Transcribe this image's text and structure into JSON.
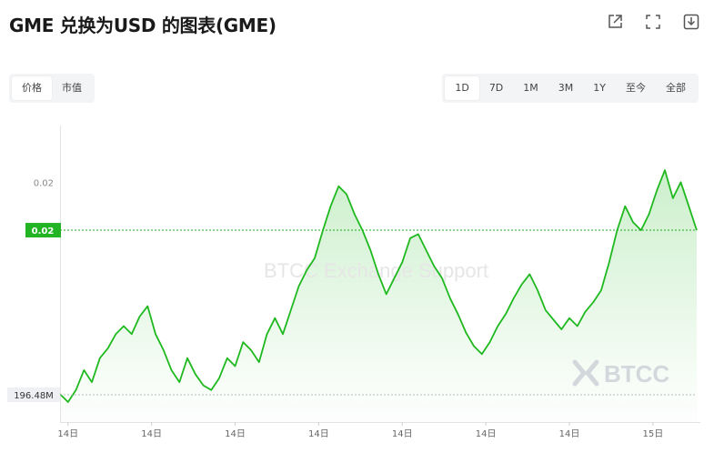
{
  "header": {
    "title": "GME 兑换为USD 的图表(GME)"
  },
  "toolbar": {
    "icons": [
      "share-icon",
      "fullscreen-icon",
      "download-icon"
    ]
  },
  "metric_tabs": {
    "items": [
      "价格",
      "市值"
    ],
    "active": 0
  },
  "range_tabs": {
    "items": [
      "1D",
      "7D",
      "1M",
      "3M",
      "1Y",
      "至今",
      "全部"
    ],
    "active": 0
  },
  "watermark": {
    "text": "BTCC Exchange Support",
    "logo": "BTCC"
  },
  "colors": {
    "line": "#1fb91f",
    "badge": "#22b422",
    "fill_top": "#c9eec9"
  },
  "chart_data": {
    "type": "area",
    "xlabel": "",
    "ylabel": "",
    "ylim": [
      0.0176,
      0.0214
    ],
    "y_ticks": [
      {
        "value": 0.0206,
        "label": "0.02"
      }
    ],
    "current_price": {
      "value": 0.02,
      "label": "0.02"
    },
    "volume_label": "196.48M",
    "x_ticks": [
      {
        "x": 1,
        "label": "14日"
      },
      {
        "x": 11.5,
        "label": "14日"
      },
      {
        "x": 22,
        "label": "14日"
      },
      {
        "x": 32.5,
        "label": "14日"
      },
      {
        "x": 43,
        "label": "14日"
      },
      {
        "x": 53.5,
        "label": "14日"
      },
      {
        "x": 64,
        "label": "14日"
      },
      {
        "x": 74.5,
        "label": "15日"
      }
    ],
    "grid": false,
    "series": [
      {
        "name": "",
        "x": [
          0,
          1,
          2,
          3,
          4,
          5,
          6,
          7,
          8,
          9,
          10,
          11,
          12,
          13,
          14,
          15,
          16,
          17,
          18,
          19,
          20,
          21,
          22,
          23,
          24,
          25,
          26,
          27,
          28,
          29,
          30,
          31,
          32,
          33,
          34,
          35,
          36,
          37,
          38,
          39,
          40,
          41,
          42,
          43,
          44,
          45,
          46,
          47,
          48,
          49,
          50,
          51,
          52,
          53,
          54,
          55,
          56,
          57,
          58,
          59,
          60,
          61,
          62,
          63,
          64,
          65,
          66,
          67,
          68,
          69,
          70,
          71,
          72,
          73,
          74,
          75,
          76,
          77,
          78,
          79,
          80
        ],
        "values": [
          0.01795,
          0.01785,
          0.018,
          0.01825,
          0.0181,
          0.0184,
          0.01852,
          0.0187,
          0.0188,
          0.0187,
          0.01892,
          0.01905,
          0.0187,
          0.0185,
          0.01825,
          0.0181,
          0.0184,
          0.0182,
          0.01806,
          0.018,
          0.01815,
          0.0184,
          0.0183,
          0.0186,
          0.0185,
          0.01835,
          0.0187,
          0.0189,
          0.0187,
          0.019,
          0.0193,
          0.0195,
          0.01965,
          0.01999,
          0.0203,
          0.02055,
          0.02045,
          0.0202,
          0.02,
          0.01975,
          0.01945,
          0.0192,
          0.0194,
          0.0196,
          0.0199,
          0.01995,
          0.01975,
          0.01955,
          0.0194,
          0.01915,
          0.01895,
          0.01872,
          0.01855,
          0.01845,
          0.0186,
          0.0188,
          0.01895,
          0.01915,
          0.01932,
          0.01945,
          0.01925,
          0.019,
          0.01888,
          0.01876,
          0.0189,
          0.0188,
          0.01898,
          0.0191,
          0.01925,
          0.0196,
          0.02,
          0.0203,
          0.0201,
          0.02,
          0.0202,
          0.0205,
          0.02075,
          0.0204,
          0.0206,
          0.0203,
          0.02
        ]
      }
    ]
  }
}
